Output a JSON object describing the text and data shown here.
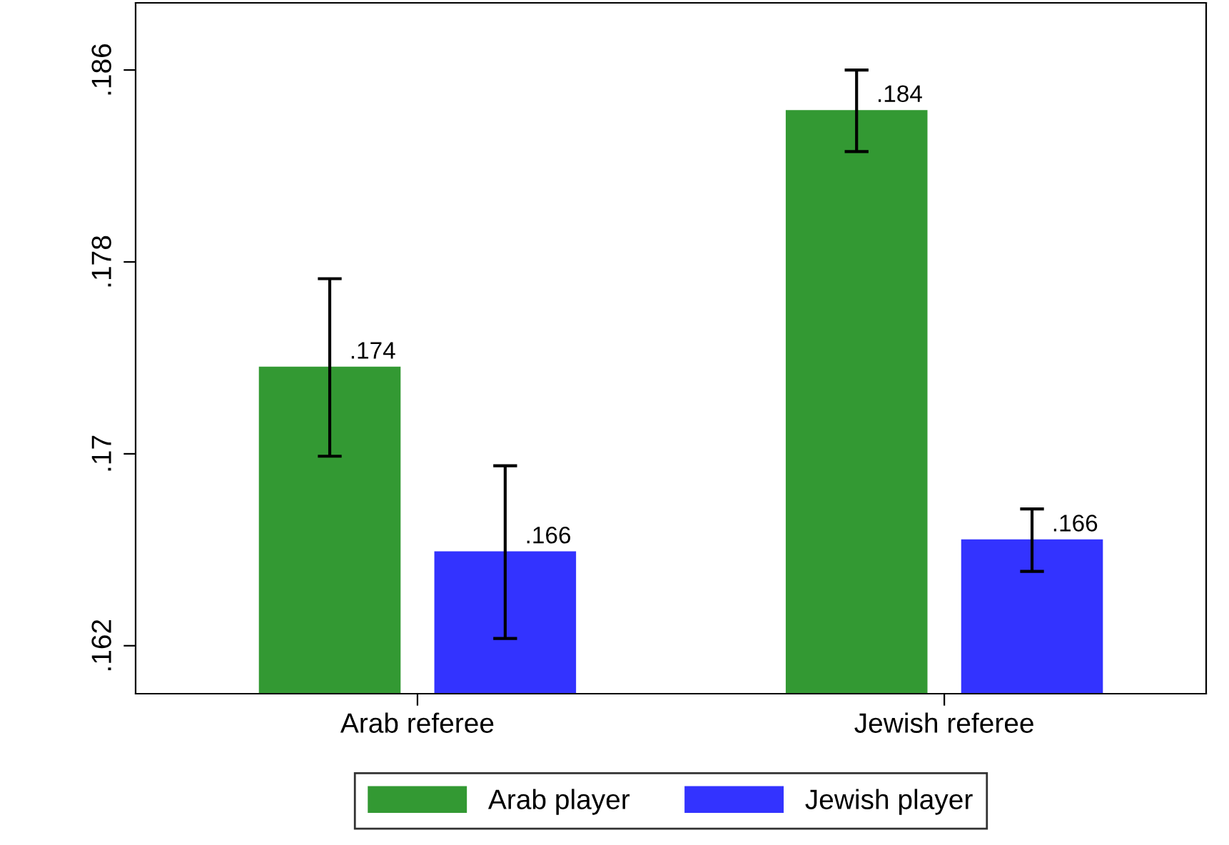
{
  "chart_data": {
    "type": "bar",
    "categories": [
      "Arab referee",
      "Jewish referee"
    ],
    "series": [
      {
        "name": "Arab player",
        "color": "#339933",
        "values": [
          0.1736,
          0.1843
        ],
        "errors": [
          0.0037,
          0.0017
        ],
        "value_labels": [
          ".174",
          ".184"
        ]
      },
      {
        "name": "Jewish player",
        "color": "#3333ff",
        "values": [
          0.1659,
          0.1664
        ],
        "errors": [
          0.0036,
          0.0013
        ],
        "value_labels": [
          ".166",
          ".166"
        ]
      }
    ],
    "ylim": [
      0.16,
      0.1888
    ],
    "yticks": [
      {
        "value": 0.162,
        "label": ".162"
      },
      {
        "value": 0.17,
        "label": ".17"
      },
      {
        "value": 0.178,
        "label": ".178"
      },
      {
        "value": 0.186,
        "label": ".186"
      }
    ],
    "grid": false,
    "legend": "bottom"
  }
}
